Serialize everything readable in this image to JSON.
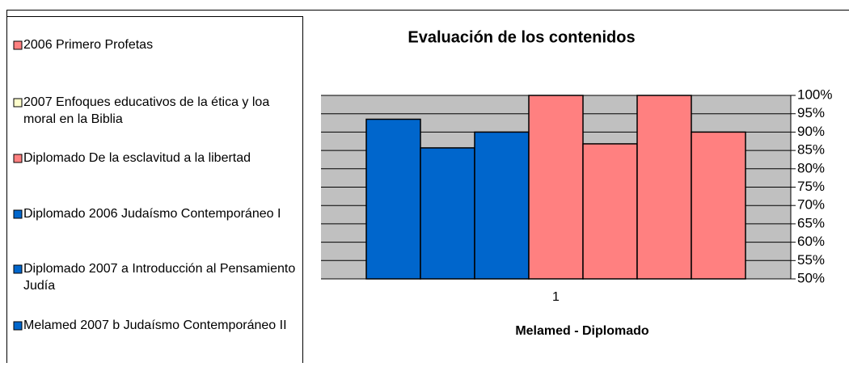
{
  "chart_data": {
    "type": "bar",
    "title": "Evaluación de los contenidos",
    "x_label": "Melamed - Diplomado",
    "categories": [
      "1"
    ],
    "series": [
      {
        "name": "2006 Primero Profetas",
        "color": "#0066CC",
        "legend_color": "#FF8080",
        "values": [
          93.5
        ]
      },
      {
        "name": "2007 Enfoques educativos de la ética y loa moral en la Biblia",
        "color": "#0066CC",
        "legend_color": "#FFFFCC",
        "values": [
          85.7
        ]
      },
      {
        "name": "Diplomado De la esclavitud a la libertad",
        "color": "#0066CC",
        "legend_color": "#FF8080",
        "values": [
          90
        ]
      },
      {
        "name": "Diplomado 2006 Judaísmo Contemporáneo I",
        "color": "#FF8080",
        "legend_color": "#0066CC",
        "values": [
          100
        ]
      },
      {
        "name": "Diplomado 2007 a Introducción al Pensamiento Judía",
        "color": "#FF8080",
        "legend_color": "#0066CC",
        "values": [
          86.8
        ]
      },
      {
        "name": "Melamed 2007 b Judaísmo Contemporáneo II",
        "color": "#FF8080",
        "legend_color": "#0066CC",
        "values": [
          100
        ]
      },
      {
        "name": null,
        "color": "#FF8080",
        "values": [
          90
        ]
      }
    ],
    "ylim": [
      50,
      100
    ],
    "yticks": [
      {
        "value": 50,
        "label": "50%"
      },
      {
        "value": 55,
        "label": "55%"
      },
      {
        "value": 60,
        "label": "60%"
      },
      {
        "value": 65,
        "label": "65%"
      },
      {
        "value": 70,
        "label": "70%"
      },
      {
        "value": 75,
        "label": "75%"
      },
      {
        "value": 80,
        "label": "80%"
      },
      {
        "value": 85,
        "label": "85%"
      },
      {
        "value": 90,
        "label": "90%"
      },
      {
        "value": 95,
        "label": "95%"
      },
      {
        "value": 100,
        "label": "100%"
      }
    ],
    "y_axis_side": "right",
    "grid": true,
    "plot_background": "#C0C0C0"
  }
}
